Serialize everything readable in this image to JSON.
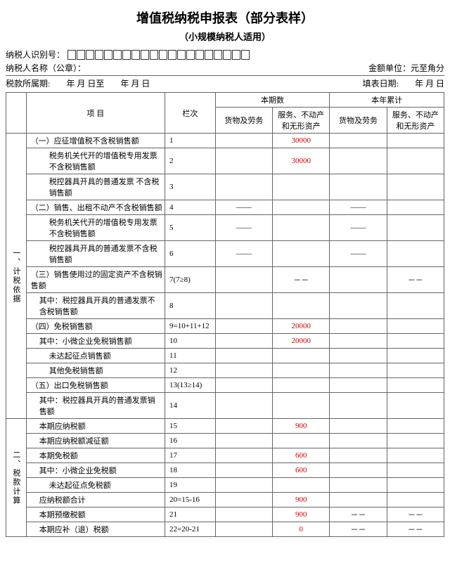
{
  "title": "增值税纳税申报表（部分表样）",
  "subtitle": "（小规模纳税人适用）",
  "header": {
    "taxpayer_id_label": "纳税人识别号：",
    "id_box_count": 20,
    "taxpayer_name_label": "纳税人名称（公章）：",
    "amount_unit_label": "金额单位：元至角分",
    "period_label": "税款所属期:",
    "period_from": "年  月  日至",
    "period_to": "年  月  日",
    "fill_date_label": "填表日期:",
    "fill_date": "年  月  日"
  },
  "columns": {
    "item": "项   目",
    "lanci": "栏次",
    "current": "本期数",
    "ytd": "本年累计",
    "goods": "货物及劳务",
    "services": "服务、不动产和无形资产"
  },
  "sections": {
    "s1": "一、计税依据",
    "s2": "二、税款计算"
  },
  "rows": [
    {
      "item": "（一）应征增值税不含税销售额",
      "cls": "l",
      "lanci": "1",
      "c1": "",
      "c2": "30000",
      "c2red": true,
      "c3": "",
      "c4": ""
    },
    {
      "item": "税务机关代开的增值税专用发票不含税销售额",
      "cls": "indent2",
      "lanci": "2",
      "c1": "",
      "c2": "30000",
      "c2red": true,
      "c3": "",
      "c4": ""
    },
    {
      "item": "税控器具开具的普通发票     不含税销售额",
      "cls": "indent2",
      "pre": "",
      "lanci": "3",
      "c1": "",
      "c2": "",
      "c3": "",
      "c4": ""
    },
    {
      "item": "（二）销售、出租不动产不含税销售额",
      "cls": "l",
      "lanci": "4",
      "c1": "——",
      "c2": "",
      "c3": "——",
      "c4": ""
    },
    {
      "item": "税务机关代开的增值税专用发票不含税销售额",
      "cls": "indent2",
      "lanci": "5",
      "c1": "——",
      "c2": "",
      "c3": "——",
      "c4": ""
    },
    {
      "item": "税控器具开具的普通发票不含税销售额",
      "cls": "indent2",
      "lanci": "6",
      "c1": "——",
      "c2": "",
      "c3": "——",
      "c4": ""
    },
    {
      "item": "（三）销售使用过的固定资产不含税销售额",
      "cls": "l",
      "lanci": "7(7≥8)",
      "c1": "",
      "c2": "－－",
      "c3": "",
      "c4": "－－"
    },
    {
      "item": "其中：税控器具开具的普通发票不含税销售额",
      "cls": "l indent1",
      "lanci": "8",
      "c1": "",
      "c2": "",
      "c3": "",
      "c4": ""
    },
    {
      "item": "（四）免税销售额",
      "cls": "l",
      "lanci": "9=10+11+12",
      "c1": "",
      "c2": "20000",
      "c2red": true,
      "c3": "",
      "c4": ""
    },
    {
      "item": "其中：小微企业免税销售额",
      "cls": "l indent1",
      "lanci": "10",
      "c1": "",
      "c2": "20000",
      "c2red": true,
      "c3": "",
      "c4": ""
    },
    {
      "item": "未达起征点销售额",
      "cls": "indent2",
      "lanci": "11",
      "c1": "",
      "c2": "",
      "c3": "",
      "c4": ""
    },
    {
      "item": "其他免税销售额",
      "cls": "indent2",
      "lanci": "12",
      "c1": "",
      "c2": "",
      "c3": "",
      "c4": ""
    },
    {
      "item": "（五）出口免税销售额",
      "cls": "l",
      "lanci": "13(13≥14)",
      "c1": "",
      "c2": "",
      "c3": "",
      "c4": ""
    },
    {
      "item": "其中：税控器具开具的普通发票销售额",
      "cls": "l indent1",
      "lanci": "14",
      "c1": "",
      "c2": "",
      "c3": "",
      "c4": ""
    }
  ],
  "rows2": [
    {
      "item": "本期应纳税额",
      "cls": "l indent1",
      "lanci": "15",
      "c1": "",
      "c2": "900",
      "c2red": true,
      "c3": "",
      "c4": ""
    },
    {
      "item": "本期应纳税额减征额",
      "cls": "l indent1",
      "lanci": "16",
      "c1": "",
      "c2": "",
      "c3": "",
      "c4": ""
    },
    {
      "item": "本期免税额",
      "cls": "l indent1",
      "lanci": "17",
      "c1": "",
      "c2": "600",
      "c2red": true,
      "c3": "",
      "c4": ""
    },
    {
      "item": "其中：小微企业免税额",
      "cls": "l indent1",
      "lanci": "18",
      "c1": "",
      "c2": "600",
      "c2red": true,
      "c3": "",
      "c4": ""
    },
    {
      "item": "未达起征点免税额",
      "cls": "indent2",
      "lanci": "19",
      "c1": "",
      "c2": "",
      "c3": "",
      "c4": ""
    },
    {
      "item": "应纳税额合计",
      "cls": "l indent1",
      "lanci": "20=15-16",
      "c1": "",
      "c2": "900",
      "c2red": true,
      "c3": "",
      "c4": ""
    },
    {
      "item": "本期预缴税额",
      "cls": "l indent1",
      "lanci": "21",
      "c1": "",
      "c2": "900",
      "c2red": true,
      "c3": "－－",
      "c4": "－－"
    },
    {
      "item": "本期应补（退）税额",
      "cls": "l indent1",
      "lanci": "22=20-21",
      "c1": "",
      "c2": "0",
      "c2red": true,
      "c3": "－－",
      "c4": "－－"
    }
  ]
}
